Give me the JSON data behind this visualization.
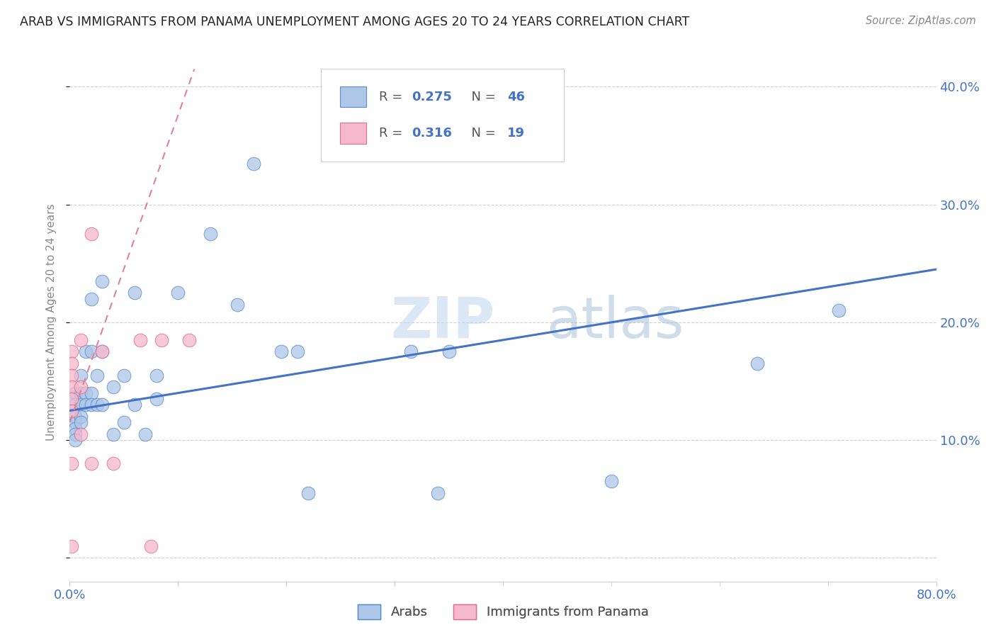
{
  "title": "ARAB VS IMMIGRANTS FROM PANAMA UNEMPLOYMENT AMONG AGES 20 TO 24 YEARS CORRELATION CHART",
  "source": "Source: ZipAtlas.com",
  "ylabel": "Unemployment Among Ages 20 to 24 years",
  "xlim": [
    0.0,
    0.8
  ],
  "ylim": [
    -0.02,
    0.42
  ],
  "x_ticks": [
    0.0,
    0.1,
    0.2,
    0.3,
    0.4,
    0.5,
    0.6,
    0.7,
    0.8
  ],
  "y_ticks": [
    0.0,
    0.1,
    0.2,
    0.3,
    0.4
  ],
  "arab_color": "#aec6e8",
  "arab_edge_color": "#5b8ec4",
  "panama_color": "#f5b8cc",
  "panama_edge_color": "#d97090",
  "arab_line_color": "#4472c4",
  "panama_line_color": "#e0809a",
  "watermark_color": "#dce8f5",
  "tick_label_color": "#4472c4",
  "ylabel_color": "#888888",
  "title_color": "#222222",
  "source_color": "#888888",
  "grid_color": "#d0d0d0",
  "arab_points_x": [
    0.005,
    0.005,
    0.005,
    0.005,
    0.005,
    0.005,
    0.005,
    0.01,
    0.01,
    0.01,
    0.01,
    0.01,
    0.015,
    0.015,
    0.015,
    0.02,
    0.02,
    0.02,
    0.02,
    0.025,
    0.025,
    0.03,
    0.03,
    0.03,
    0.04,
    0.04,
    0.05,
    0.05,
    0.06,
    0.06,
    0.07,
    0.08,
    0.08,
    0.1,
    0.13,
    0.155,
    0.17,
    0.195,
    0.21,
    0.22,
    0.315,
    0.34,
    0.35,
    0.5,
    0.635,
    0.71
  ],
  "arab_points_y": [
    0.14,
    0.13,
    0.12,
    0.115,
    0.11,
    0.105,
    0.1,
    0.155,
    0.14,
    0.13,
    0.12,
    0.115,
    0.175,
    0.14,
    0.13,
    0.22,
    0.175,
    0.14,
    0.13,
    0.155,
    0.13,
    0.235,
    0.175,
    0.13,
    0.145,
    0.105,
    0.155,
    0.115,
    0.225,
    0.13,
    0.105,
    0.155,
    0.135,
    0.225,
    0.275,
    0.215,
    0.335,
    0.175,
    0.175,
    0.055,
    0.175,
    0.055,
    0.175,
    0.065,
    0.165,
    0.21
  ],
  "panama_points_x": [
    0.002,
    0.002,
    0.002,
    0.002,
    0.002,
    0.002,
    0.002,
    0.002,
    0.01,
    0.01,
    0.01,
    0.02,
    0.02,
    0.03,
    0.04,
    0.065,
    0.075,
    0.085,
    0.11
  ],
  "panama_points_y": [
    0.175,
    0.165,
    0.155,
    0.145,
    0.135,
    0.125,
    0.08,
    0.01,
    0.185,
    0.145,
    0.105,
    0.275,
    0.08,
    0.175,
    0.08,
    0.185,
    0.01,
    0.185,
    0.185
  ],
  "arab_line_x": [
    0.0,
    0.8
  ],
  "arab_line_y": [
    0.125,
    0.245
  ],
  "panama_line_x": [
    0.0,
    0.115
  ],
  "panama_line_y": [
    0.115,
    0.415
  ]
}
